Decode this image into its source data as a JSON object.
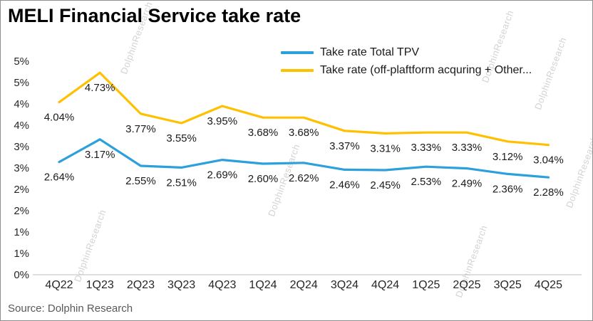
{
  "title": "MELI Financial Service take rate",
  "source": "Source: Dolphin Research",
  "watermark": "DolphinResearch",
  "legend": [
    {
      "label": "Take rate Total TPV",
      "color": "#2BA0DC"
    },
    {
      "label": "Take rate (off-plaftform acquring + Other...",
      "color": "#FFC000"
    }
  ],
  "chart_data": {
    "type": "line",
    "title": "MELI Financial Service take rate",
    "categories": [
      "4Q22",
      "1Q23",
      "2Q23",
      "3Q23",
      "4Q23",
      "1Q24",
      "2Q24",
      "3Q24",
      "4Q24",
      "1Q25",
      "2Q25",
      "3Q25",
      "4Q25"
    ],
    "series": [
      {
        "name": "Take rate Total TPV",
        "color": "#2BA0DC",
        "values": [
          2.64,
          3.17,
          2.55,
          2.51,
          2.69,
          2.6,
          2.62,
          2.46,
          2.45,
          2.53,
          2.49,
          2.36,
          2.28
        ]
      },
      {
        "name": "Take rate (off-plaftform acquring + Other...",
        "color": "#FFC000",
        "values": [
          4.04,
          4.73,
          3.77,
          3.55,
          3.95,
          3.68,
          3.68,
          3.37,
          3.31,
          3.33,
          3.33,
          3.12,
          3.04
        ]
      }
    ],
    "unit": "%",
    "ylim": [
      0,
      5
    ],
    "ytick_step": 0.5,
    "ytick_labels_bottom_to_top": [
      "0%",
      "1%",
      "1%",
      "2%",
      "2%",
      "3%",
      "3%",
      "4%",
      "4%",
      "5%",
      "5%"
    ],
    "grid": false,
    "legend_position": "top-right",
    "data_labels": true
  }
}
